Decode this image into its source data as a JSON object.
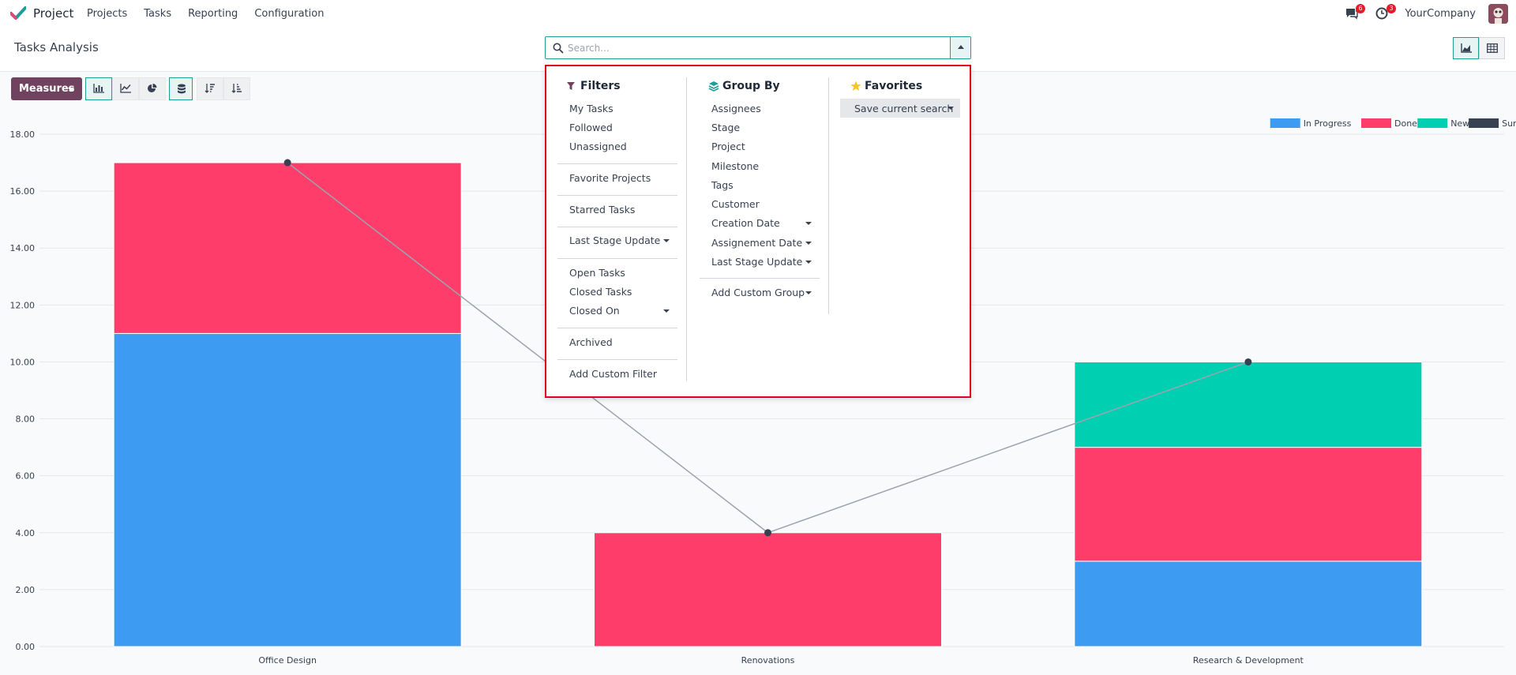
{
  "navbar": {
    "app_name": "Project",
    "menu": [
      "Projects",
      "Tasks",
      "Reporting",
      "Configuration"
    ],
    "messages_count": "6",
    "activities_count": "3",
    "company": "YourCompany"
  },
  "control": {
    "title": "Tasks Analysis",
    "search_placeholder": "Search..."
  },
  "toolbar": {
    "measures_label": "Measures"
  },
  "dropdown": {
    "filters": {
      "title": "Filters",
      "items": [
        "My Tasks",
        "Followed",
        "Unassigned",
        "Favorite Projects",
        "Starred Tasks",
        "Last Stage Update",
        "Open Tasks",
        "Closed Tasks",
        "Closed On",
        "Archived",
        "Add Custom Filter"
      ]
    },
    "group_by": {
      "title": "Group By",
      "items": [
        "Assignees",
        "Stage",
        "Project",
        "Milestone",
        "Tags",
        "Customer",
        "Creation Date",
        "Assignement Date",
        "Last Stage Update",
        "Add Custom Group"
      ]
    },
    "favorites": {
      "title": "Favorites",
      "save_label": "Save current search"
    }
  },
  "chart_data": {
    "type": "bar",
    "stacked": true,
    "categories": [
      "Office Design",
      "Renovations",
      "Research & Development"
    ],
    "series": [
      {
        "name": "In Progress",
        "color": "#3d9cf2",
        "values": [
          11,
          0,
          3
        ]
      },
      {
        "name": "Done",
        "color": "#ff3d6a",
        "values": [
          6,
          4,
          4
        ]
      },
      {
        "name": "New",
        "color": "#00cfb2",
        "values": [
          0,
          0,
          3
        ]
      }
    ],
    "line_series": {
      "name": "Sum",
      "color": "#374151",
      "values": [
        17,
        4,
        10
      ]
    },
    "ylim": [
      0,
      18
    ],
    "yticks": [
      "0.00",
      "2.00",
      "4.00",
      "6.00",
      "8.00",
      "10.00",
      "12.00",
      "14.00",
      "16.00",
      "18.00"
    ],
    "legend": "top-right",
    "grid": true
  }
}
